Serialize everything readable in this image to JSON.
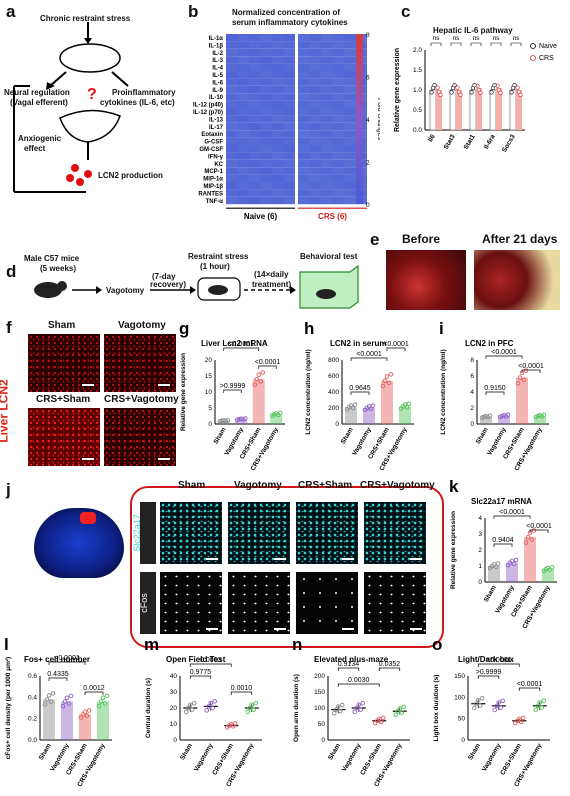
{
  "panels": {
    "a": {
      "letter": "a",
      "chronic": "Chronic restraint stress",
      "neural": "Neural regulation",
      "vagal": "(Vagal efferent)",
      "proinf": "Proinflammatory",
      "cytokines": "cytokines (IL-6, etc)",
      "q": "?",
      "anxiogenic": "Anxiogenic",
      "effect": "effect",
      "lcn2": "LCN2 production"
    },
    "b": {
      "letter": "b",
      "title1": "Normalized concentration of",
      "title2": "serum inflammatory cytokines",
      "rows": [
        "IL-1α",
        "IL-1β",
        "IL-2",
        "IL-3",
        "IL-4",
        "IL-5",
        "IL-6",
        "IL-9",
        "IL-10",
        "IL-12 (p40)",
        "IL-12 (p70)",
        "IL-13",
        "IL-17",
        "Eotaxin",
        "G-CSF",
        "GM-CSF",
        "IFN-γ",
        "KC",
        "MCP-1",
        "MIP-1α",
        "MIP-1β",
        "RANTES",
        "TNF-α"
      ],
      "group_naive": "Naive (6)",
      "group_crs": "CRS (6)",
      "scale_ticks": [
        "8",
        "6",
        "4",
        "2",
        "0"
      ],
      "scale_label": "Fold changes"
    },
    "c": {
      "letter": "c",
      "title": "Hepatic IL-6 pathway",
      "ylabel": "Relative gene expression",
      "yticks": [
        "0.0",
        "0.5",
        "1.0",
        "1.5",
        "2.0"
      ],
      "genes": [
        "Il6",
        "Stat3",
        "Stat1",
        "Il-6ra",
        "Socs3"
      ],
      "ns": "ns",
      "legend_naive": "Naive",
      "legend_crs": "CRS"
    },
    "d": {
      "letter": "d",
      "mice": "Male C57 mice",
      "age": "(5 weeks)",
      "vagotomy": "Vagotomy",
      "recovery1": "(7-day",
      "recovery2": "recovery)",
      "restraint1": "Restraint stress",
      "restraint2": "(1 hour)",
      "daily1": "(14×daily",
      "daily2": "treatment)",
      "behavioral": "Behavioral test"
    },
    "e": {
      "letter": "e",
      "before": "Before",
      "after": "After 21 days"
    },
    "f": {
      "letter": "f",
      "side": "Liver LCN2",
      "sham": "Sham",
      "vag": "Vagotomy",
      "crs_sham": "CRS+Sham",
      "crs_vag": "CRS+Vagotomy"
    },
    "g": {
      "letter": "g",
      "title": "Liver Lcn2 mRNA",
      "ylabel": "Relative gene expression",
      "yticks": [
        "0",
        "5",
        "10",
        "15",
        "20"
      ],
      "p1": "<0.0001",
      "p2": "<0.0001",
      "p3": ">0.9999"
    },
    "h": {
      "letter": "h",
      "title": "LCN2 in serum",
      "ylabel": "LCN2 concentration (ng/ml)",
      "yticks": [
        "0",
        "200",
        "400",
        "600",
        "800"
      ],
      "p1": "<0.0001",
      "p2": "<0.0001",
      "p3": "0.9645"
    },
    "i": {
      "letter": "i",
      "title": "LCN2 in PFC",
      "ylabel": "LCN2 concentration (ng/ml)",
      "yticks": [
        "0",
        "2",
        "4",
        "6",
        "8"
      ],
      "p1": "<0.0001",
      "p2": "<0.0001",
      "p3": "0.9150"
    },
    "j": {
      "letter": "j",
      "sham": "Sham",
      "vag": "Vagotomy",
      "crs_sham": "CRS+Sham",
      "crs_vag": "CRS+Vagotomy",
      "stain1": "Slc22a17",
      "stain2": "cFos"
    },
    "k": {
      "letter": "k",
      "title": "Slc22a17 mRNA",
      "ylabel": "Relative gene expression",
      "yticks": [
        "0",
        "1",
        "2",
        "3",
        "4"
      ],
      "p1": "<0.0001",
      "p2": "<0.0001",
      "p3": "0.9404"
    },
    "l": {
      "letter": "l",
      "title": "Fos+ cell number",
      "ylabel": "cFos+ cell density (per 1000 μm²)",
      "yticks": [
        "0.0",
        "0.2",
        "0.4",
        "0.6"
      ],
      "p1": "<0.0001",
      "p2": "0.4335",
      "p3": "0.0012"
    },
    "m": {
      "letter": "m",
      "title": "Open Field Test",
      "ylabel": "Central duration (s)",
      "yticks": [
        "0",
        "10",
        "20",
        "30",
        "40"
      ],
      "p1": "0.0003",
      "p2": "0.9775",
      "p3": "0.0010"
    },
    "n": {
      "letter": "n",
      "title": "Elevated plus-maze",
      "ylabel": "Open arm duration (s)",
      "yticks": [
        "0",
        "50",
        "100",
        "150",
        "200"
      ],
      "p1": "0.9134",
      "p2": "0.0352",
      "p3": "0.0030"
    },
    "o": {
      "letter": "o",
      "title": "Light/Dark box",
      "ylabel": "Light box duration (s)",
      "yticks": [
        "0",
        "50",
        "100",
        "150"
      ],
      "p1": "<0.0001",
      "p2": ">0.9999",
      "p3": "<0.0001"
    },
    "groups": [
      "Sham",
      "Vagotomy",
      "CRS+Sham",
      "CRS+Vagotomy"
    ],
    "colors": {
      "sham": "#8a8a8a",
      "vag": "#8e5fc4",
      "crs_sham": "#e65a5a",
      "crs_vag": "#52c45a",
      "heat_low": "#4b5bd6",
      "heat_high": "#d93a3a"
    },
    "chart_data": [
      {
        "panel": "b",
        "type": "heatmap",
        "rows": [
          "IL-1α",
          "IL-1β",
          "IL-2",
          "IL-3",
          "IL-4",
          "IL-5",
          "IL-6",
          "IL-9",
          "IL-10",
          "IL-12 (p40)",
          "IL-12 (p70)",
          "IL-13",
          "IL-17",
          "Eotaxin",
          "G-CSF",
          "GM-CSF",
          "IFN-γ",
          "KC",
          "MCP-1",
          "MIP-1α",
          "MIP-1β",
          "RANTES",
          "TNF-α"
        ],
        "columns": [
          "Naive 1",
          "Naive 2",
          "Naive 3",
          "Naive 4",
          "Naive 5",
          "Naive 6",
          "CRS 1",
          "CRS 2",
          "CRS 3",
          "CRS 4",
          "CRS 5",
          "CRS 6"
        ],
        "scale": [
          0,
          8
        ],
        "approx_level": 1
      },
      {
        "panel": "c",
        "type": "bar",
        "categories": [
          "Il6",
          "Stat3",
          "Stat1",
          "Il-6ra",
          "Socs3"
        ],
        "series": [
          {
            "name": "Naive",
            "values": [
              1.0,
              1.0,
              1.0,
              1.0,
              1.0
            ]
          },
          {
            "name": "CRS",
            "values": [
              1.0,
              1.0,
              1.05,
              1.05,
              1.0
            ]
          }
        ],
        "ylim": [
          0,
          2
        ]
      },
      {
        "panel": "g",
        "type": "bar",
        "categories": [
          "Sham",
          "Vagotomy",
          "CRS+Sham",
          "CRS+Vagotomy"
        ],
        "values": [
          1,
          1.5,
          14,
          3
        ],
        "ylim": [
          0,
          20
        ]
      },
      {
        "panel": "h",
        "type": "bar",
        "categories": [
          "Sham",
          "Vagotomy",
          "CRS+Sham",
          "CRS+Vagotomy"
        ],
        "values": [
          210,
          200,
          540,
          220
        ],
        "ylim": [
          0,
          800
        ]
      },
      {
        "panel": "i",
        "type": "bar",
        "categories": [
          "Sham",
          "Vagotomy",
          "CRS+Sham",
          "CRS+Vagotomy"
        ],
        "values": [
          0.9,
          1.0,
          5.8,
          1.0
        ],
        "ylim": [
          0,
          8
        ]
      },
      {
        "panel": "k",
        "type": "bar",
        "categories": [
          "Sham",
          "Vagotomy",
          "CRS+Sham",
          "CRS+Vagotomy"
        ],
        "values": [
          1.0,
          1.2,
          2.8,
          0.8
        ],
        "ylim": [
          0,
          4
        ]
      },
      {
        "panel": "l",
        "type": "bar",
        "categories": [
          "Sham",
          "Vagotomy",
          "CRS+Sham",
          "CRS+Vagotomy"
        ],
        "values": [
          0.38,
          0.36,
          0.24,
          0.36
        ],
        "ylim": [
          0,
          0.6
        ]
      },
      {
        "panel": "m",
        "type": "scatter",
        "categories": [
          "Sham",
          "Vagotomy",
          "CRS+Sham",
          "CRS+Vagotomy"
        ],
        "values": [
          20,
          21,
          9,
          20
        ],
        "ylim": [
          0,
          40
        ]
      },
      {
        "panel": "n",
        "type": "scatter",
        "categories": [
          "Sham",
          "Vagotomy",
          "CRS+Sham",
          "CRS+Vagotomy"
        ],
        "values": [
          95,
          100,
          60,
          90
        ],
        "ylim": [
          0,
          200
        ]
      },
      {
        "panel": "o",
        "type": "scatter",
        "categories": [
          "Sham",
          "Vagotomy",
          "CRS+Sham",
          "CRS+Vagotomy"
        ],
        "values": [
          85,
          80,
          45,
          80
        ],
        "ylim": [
          0,
          150
        ]
      }
    ]
  }
}
